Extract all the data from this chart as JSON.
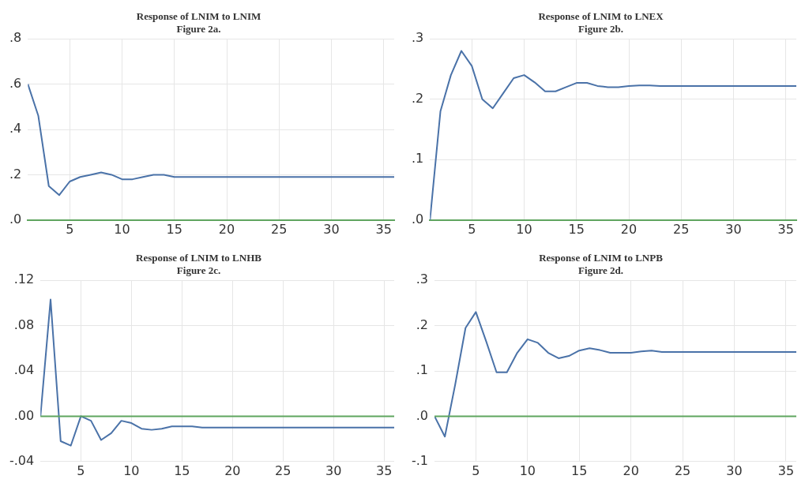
{
  "chart_data": [
    {
      "type": "line",
      "title": "Response of LNIM to LNIM",
      "subtitle": "Figure 2a.",
      "x": [
        1,
        2,
        3,
        4,
        5,
        6,
        7,
        8,
        9,
        10,
        11,
        12,
        13,
        14,
        15,
        16,
        17,
        18,
        19,
        20,
        21,
        22,
        23,
        24,
        25,
        26,
        27,
        28,
        29,
        30,
        31,
        32,
        33,
        34,
        35,
        36
      ],
      "series": [
        {
          "color": "#4a72a8",
          "values": [
            0.6,
            0.46,
            0.15,
            0.11,
            0.17,
            0.19,
            0.2,
            0.21,
            0.2,
            0.18,
            0.18,
            0.19,
            0.2,
            0.2,
            0.19,
            0.19,
            0.19,
            0.19,
            0.19,
            0.19,
            0.19,
            0.19,
            0.19,
            0.19,
            0.19,
            0.19,
            0.19,
            0.19,
            0.19,
            0.19,
            0.19,
            0.19,
            0.19,
            0.19,
            0.19,
            0.19
          ]
        }
      ],
      "xlim": [
        1,
        36
      ],
      "xticks": [
        5,
        10,
        15,
        20,
        25,
        30,
        35
      ],
      "ylim": [
        0,
        0.8
      ],
      "yticks": [
        {
          "value": 0,
          "label": ".0"
        },
        {
          "value": 0.2,
          "label": ".2"
        },
        {
          "value": 0.4,
          "label": ".4"
        },
        {
          "value": 0.6,
          "label": ".6"
        },
        {
          "value": 0.8,
          "label": ".8"
        }
      ],
      "grid": true,
      "legend": false,
      "marker": "none",
      "line_style": "solid"
    },
    {
      "type": "line",
      "title": "Response of LNIM to LNEX",
      "subtitle": "Figure 2b.",
      "x": [
        1,
        2,
        3,
        4,
        5,
        6,
        7,
        8,
        9,
        10,
        11,
        12,
        13,
        14,
        15,
        16,
        17,
        18,
        19,
        20,
        21,
        22,
        23,
        24,
        25,
        26,
        27,
        28,
        29,
        30,
        31,
        32,
        33,
        34,
        35,
        36
      ],
      "series": [
        {
          "color": "#4a72a8",
          "values": [
            0,
            0.18,
            0.24,
            0.28,
            0.255,
            0.2,
            0.185,
            0.21,
            0.235,
            0.24,
            0.228,
            0.213,
            0.213,
            0.22,
            0.227,
            0.227,
            0.222,
            0.22,
            0.22,
            0.222,
            0.223,
            0.223,
            0.222,
            0.222,
            0.222,
            0.222,
            0.222,
            0.222,
            0.222,
            0.222,
            0.222,
            0.222,
            0.222,
            0.222,
            0.222,
            0.222
          ]
        }
      ],
      "xlim": [
        1,
        36
      ],
      "xticks": [
        5,
        10,
        15,
        20,
        25,
        30,
        35
      ],
      "ylim": [
        0,
        0.3
      ],
      "yticks": [
        {
          "value": 0,
          "label": ".0"
        },
        {
          "value": 0.1,
          "label": ".1"
        },
        {
          "value": 0.2,
          "label": ".2"
        },
        {
          "value": 0.3,
          "label": ".3"
        }
      ],
      "grid": true,
      "legend": false,
      "marker": "none",
      "line_style": "solid"
    },
    {
      "type": "line",
      "title": "Response of LNIM to LNHB",
      "subtitle": "Figure 2c.",
      "x": [
        1,
        2,
        3,
        4,
        5,
        6,
        7,
        8,
        9,
        10,
        11,
        12,
        13,
        14,
        15,
        16,
        17,
        18,
        19,
        20,
        21,
        22,
        23,
        24,
        25,
        26,
        27,
        28,
        29,
        30,
        31,
        32,
        33,
        34,
        35,
        36
      ],
      "series": [
        {
          "color": "#4a72a8",
          "values": [
            0,
            0.103,
            -0.022,
            -0.026,
            0,
            -0.004,
            -0.021,
            -0.015,
            -0.004,
            -0.006,
            -0.011,
            -0.012,
            -0.011,
            -0.009,
            -0.009,
            -0.009,
            -0.01,
            -0.01,
            -0.01,
            -0.01,
            -0.01,
            -0.01,
            -0.01,
            -0.01,
            -0.01,
            -0.01,
            -0.01,
            -0.01,
            -0.01,
            -0.01,
            -0.01,
            -0.01,
            -0.01,
            -0.01,
            -0.01,
            -0.01
          ]
        }
      ],
      "xlim": [
        1,
        36
      ],
      "xticks": [
        5,
        10,
        15,
        20,
        25,
        30,
        35
      ],
      "ylim": [
        -0.04,
        0.12
      ],
      "yticks": [
        {
          "value": -0.04,
          "label": "-.04"
        },
        {
          "value": 0,
          "label": ".00"
        },
        {
          "value": 0.04,
          "label": ".04"
        },
        {
          "value": 0.08,
          "label": ".08"
        },
        {
          "value": 0.12,
          "label": ".12"
        }
      ],
      "ref_lines": [
        {
          "axis": "y",
          "value": 0,
          "color": "#5fa55f"
        }
      ],
      "grid": true,
      "legend": false,
      "marker": "none",
      "line_style": "solid"
    },
    {
      "type": "line",
      "title": "Response of LNIM to LNPB",
      "subtitle": "Figure 2d.",
      "x": [
        1,
        2,
        3,
        4,
        5,
        6,
        7,
        8,
        9,
        10,
        11,
        12,
        13,
        14,
        15,
        16,
        17,
        18,
        19,
        20,
        21,
        22,
        23,
        24,
        25,
        26,
        27,
        28,
        29,
        30,
        31,
        32,
        33,
        34,
        35,
        36
      ],
      "series": [
        {
          "color": "#4a72a8",
          "values": [
            0,
            -0.045,
            0.07,
            0.195,
            0.23,
            0.165,
            0.097,
            0.097,
            0.14,
            0.17,
            0.162,
            0.14,
            0.128,
            0.133,
            0.145,
            0.15,
            0.146,
            0.14,
            0.14,
            0.14,
            0.143,
            0.145,
            0.142,
            0.142,
            0.142,
            0.142,
            0.142,
            0.142,
            0.142,
            0.142,
            0.142,
            0.142,
            0.142,
            0.142,
            0.142,
            0.142
          ]
        }
      ],
      "xlim": [
        1,
        36
      ],
      "xticks": [
        5,
        10,
        15,
        20,
        25,
        30,
        35
      ],
      "ylim": [
        -0.1,
        0.3
      ],
      "yticks": [
        {
          "value": -0.1,
          "label": "-.1"
        },
        {
          "value": 0,
          "label": ".0"
        },
        {
          "value": 0.1,
          "label": ".1"
        },
        {
          "value": 0.2,
          "label": ".2"
        },
        {
          "value": 0.3,
          "label": ".3"
        }
      ],
      "ref_lines": [
        {
          "axis": "y",
          "value": 0,
          "color": "#5fa55f"
        }
      ],
      "grid": true,
      "legend": false,
      "marker": "none",
      "line_style": "solid"
    }
  ]
}
